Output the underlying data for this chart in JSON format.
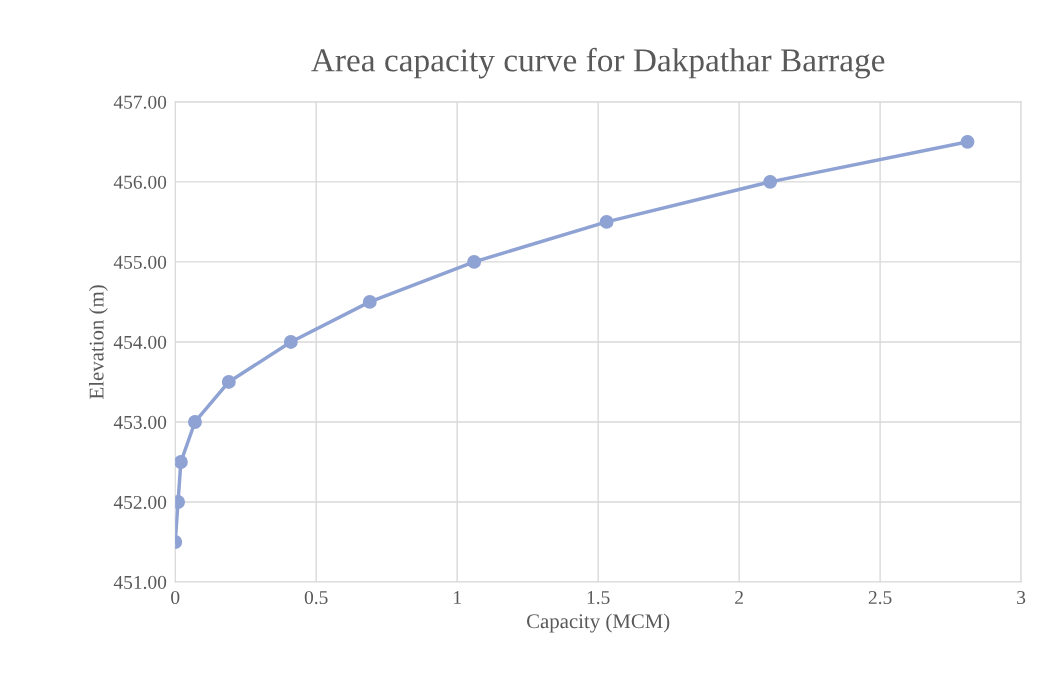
{
  "chart_data": {
    "type": "line",
    "title": "Area capacity curve for Dakpathar Barrage",
    "xlabel": "Capacity (MCM)",
    "ylabel": "Elevation (m)",
    "x": [
      0,
      0.01,
      0.02,
      0.07,
      0.19,
      0.41,
      0.69,
      1.06,
      1.53,
      2.11,
      2.81
    ],
    "series": [
      {
        "color": "#8fa2d4",
        "values": [
          451.5,
          452.0,
          452.5,
          453.0,
          453.5,
          454.0,
          454.5,
          455.0,
          455.5,
          456.0,
          456.5
        ]
      }
    ],
    "xlim": [
      0,
      3
    ],
    "xticks": [
      0,
      0.5,
      1,
      1.5,
      2,
      2.5,
      3
    ],
    "ylim": [
      451,
      457
    ],
    "yticks": [
      {
        "value": 451,
        "label": "451.00"
      },
      {
        "value": 452,
        "label": "452.00"
      },
      {
        "value": 453,
        "label": "453.00"
      },
      {
        "value": 454,
        "label": "454.00"
      },
      {
        "value": 455,
        "label": "455.00"
      },
      {
        "value": 456,
        "label": "456.00"
      },
      {
        "value": 457,
        "label": "457.00"
      }
    ],
    "grid": true,
    "marker": "circle",
    "line_style": "solid"
  }
}
